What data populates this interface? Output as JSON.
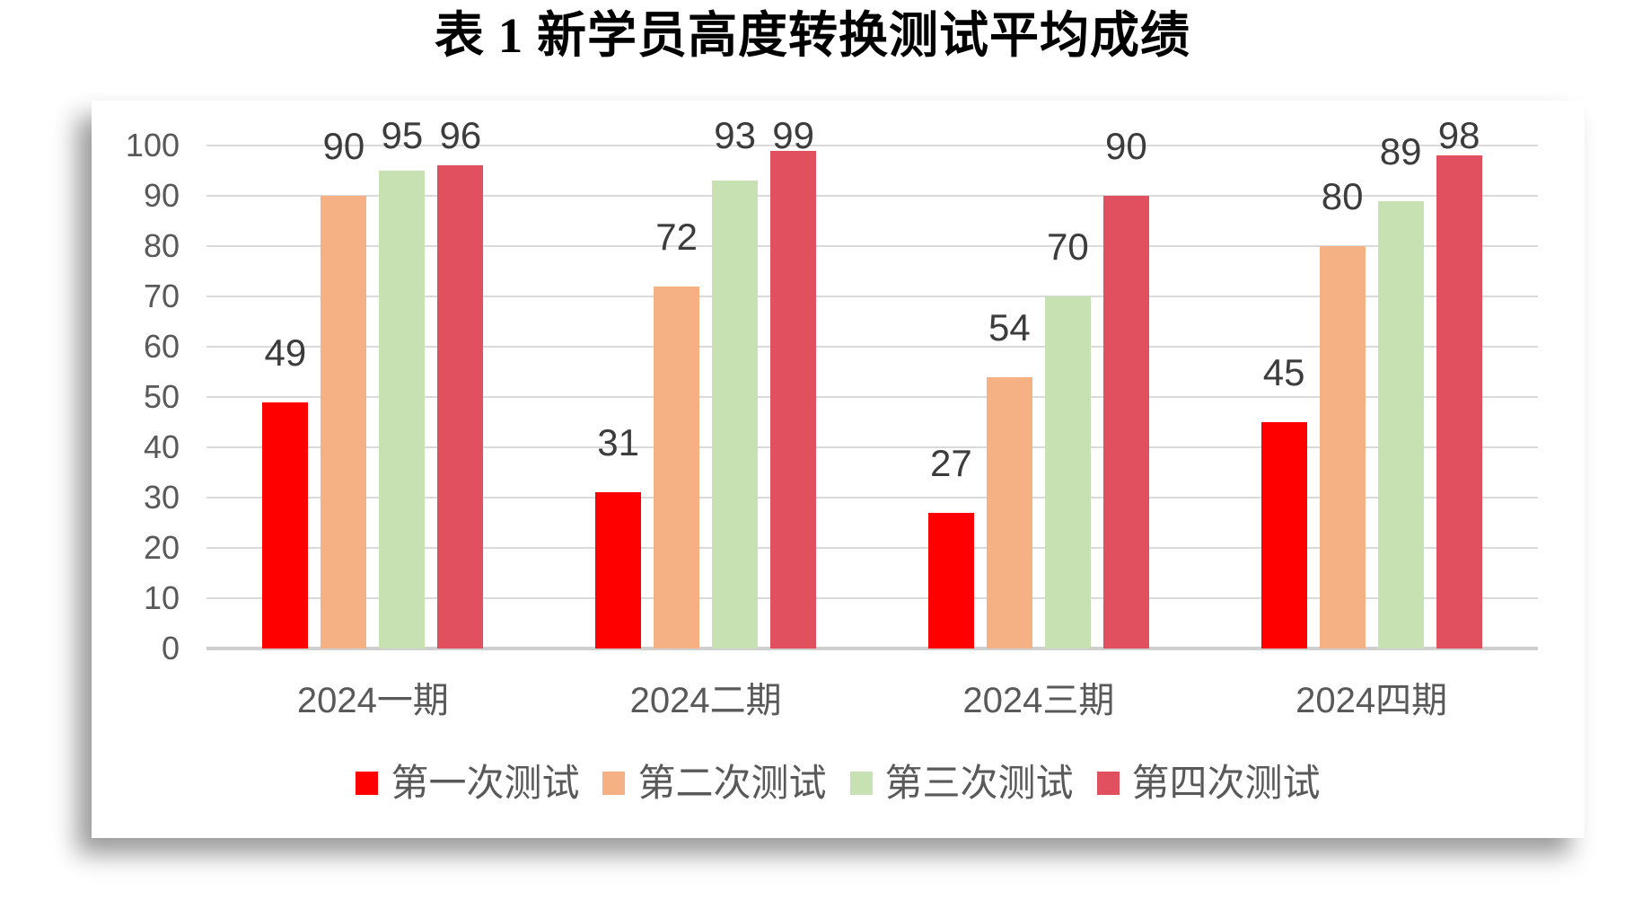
{
  "title": "表 1 新学员高度转换测试平均成绩",
  "chart_data": {
    "type": "bar",
    "title": "表 1 新学员高度转换测试平均成绩",
    "categories": [
      "2024一期",
      "2024二期",
      "2024三期",
      "2024四期"
    ],
    "series": [
      {
        "name": "第一次测试",
        "color": "#FF0000",
        "values": [
          49,
          31,
          27,
          45
        ]
      },
      {
        "name": "第二次测试",
        "color": "#F5B183",
        "values": [
          90,
          72,
          54,
          80
        ]
      },
      {
        "name": "第三次测试",
        "color": "#C8E1B2",
        "values": [
          95,
          93,
          70,
          89
        ]
      },
      {
        "name": "第四次测试",
        "color": "#E0505F",
        "values": [
          96,
          99,
          90,
          98
        ]
      }
    ],
    "ylim": [
      0,
      100
    ],
    "yticks": [
      0,
      10,
      20,
      30,
      40,
      50,
      60,
      70,
      80,
      90,
      100
    ],
    "grid": true,
    "data_labels": true,
    "legend_position": "bottom",
    "xlabel": "",
    "ylabel": ""
  },
  "colors": {
    "grid": "#DADADA",
    "axis_line": "#CFCFCF",
    "tick_text": "#595959",
    "category_text": "#595959",
    "data_label_text": "#3C3C3C",
    "legend_text": "#595959",
    "title_text": "#000000",
    "panel_bg": "#FFFFFF"
  }
}
